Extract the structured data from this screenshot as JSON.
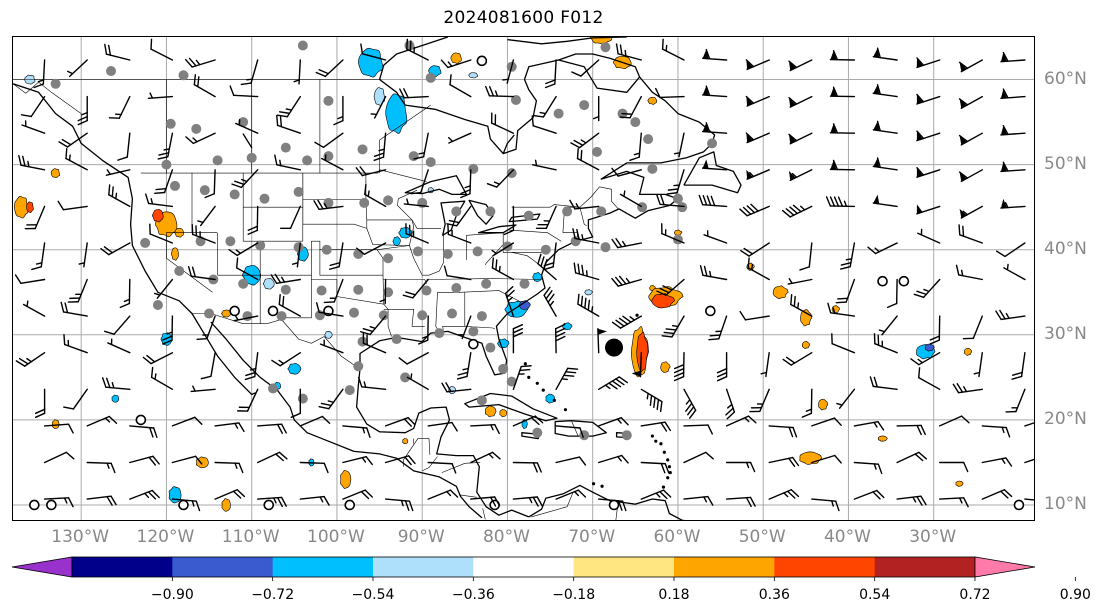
{
  "title": "2024081600 F012",
  "lat_labels": [
    "60°N",
    "50°N",
    "40°N",
    "30°N",
    "20°N",
    "10°N"
  ],
  "lon_labels": [
    "130°W",
    "120°W",
    "110°W",
    "100°W",
    "90°W",
    "80°W",
    "70°W",
    "60°W",
    "50°W",
    "40°W",
    "30°W"
  ],
  "colorbar": {
    "ticks": [
      "−0.90",
      "−0.72",
      "−0.54",
      "−0.36",
      "−0.18",
      "0.18",
      "0.36",
      "0.54",
      "0.72",
      "0.90"
    ],
    "colors": [
      "#9932cc",
      "#00008b",
      "#3a5bcf",
      "#00bfff",
      "#aee0fb",
      "#ffffff",
      "#ffe680",
      "#ffa500",
      "#ff4500",
      "#b22222",
      "#ff7aa8"
    ]
  },
  "map": {
    "extent": {
      "lon_min": -138,
      "lon_max": -18,
      "lat_min": 8,
      "lat_max": 65
    },
    "storm_center": {
      "lon": -67.5,
      "lat": 28.5
    },
    "colors": {
      "land_line": "#000000",
      "grid": "#aaaaaa",
      "station_dot": "#808080",
      "barb": "#000000"
    }
  }
}
